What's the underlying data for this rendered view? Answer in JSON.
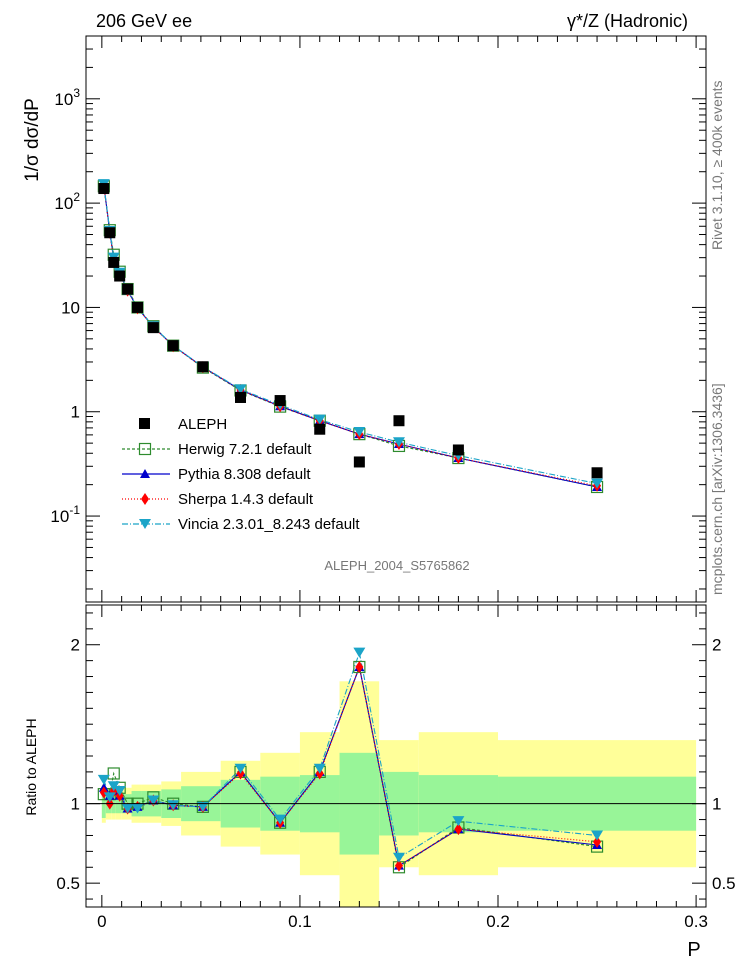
{
  "header": {
    "left": "206 GeV ee",
    "right": "γ*/Z (Hadronic)"
  },
  "side_labels": {
    "rivet": "Rivet 3.1.10, ≥ 400k events",
    "mcplots": "mcplots.cern.ch [arXiv:1306.3436]"
  },
  "colors": {
    "data": "#000000",
    "herwig": "#2e8b2e",
    "pythia": "#0000cc",
    "sherpa": "#ff0000",
    "vincia": "#1ba4c8",
    "band_inner": "#98f598",
    "band_outer": "#ffff99"
  },
  "chart_data": [
    {
      "type": "scatter",
      "title": "ALEPH_2004_S5765862",
      "ylabel": "1/σ  dσ/dP",
      "xlabel": "P",
      "yscale": "log",
      "xlim": [
        -0.008,
        0.305
      ],
      "ylim": [
        0.015,
        4000
      ],
      "ytick_labels": [
        "10^-1",
        "1",
        "10",
        "10^2",
        "10^3"
      ],
      "legend_position": "bottom-left",
      "x": [
        0.001,
        0.004,
        0.006,
        0.009,
        0.013,
        0.018,
        0.026,
        0.036,
        0.051,
        0.07,
        0.09,
        0.11,
        0.13,
        0.15,
        0.18,
        0.25
      ],
      "series": [
        {
          "name": "ALEPH",
          "key": "data",
          "values": [
            138,
            52,
            27,
            20,
            15,
            10,
            6.4,
            4.3,
            2.7,
            1.37,
            1.28,
            0.68,
            0.33,
            0.82,
            0.43,
            0.26
          ]
        },
        {
          "name": "Herwig 7.2.1 default",
          "key": "herwig",
          "values": [
            145,
            55,
            32,
            22,
            15,
            10,
            6.6,
            4.3,
            2.65,
            1.6,
            1.12,
            0.82,
            0.61,
            0.47,
            0.36,
            0.19
          ]
        },
        {
          "name": "Pythia 8.308 default",
          "key": "pythia",
          "values": [
            150,
            53,
            29,
            21,
            14.5,
            9.9,
            6.5,
            4.3,
            2.68,
            1.62,
            1.13,
            0.82,
            0.61,
            0.49,
            0.36,
            0.19
          ]
        },
        {
          "name": "Sherpa 1.4.3 default",
          "key": "sherpa",
          "values": [
            148,
            52,
            29,
            21,
            14.5,
            9.8,
            6.5,
            4.25,
            2.68,
            1.62,
            1.13,
            0.82,
            0.61,
            0.49,
            0.36,
            0.195
          ]
        },
        {
          "name": "Vincia 2.3.01_8.243 default",
          "key": "vincia",
          "values": [
            152,
            54,
            30,
            21.5,
            14.6,
            9.9,
            6.6,
            4.3,
            2.7,
            1.64,
            1.16,
            0.84,
            0.64,
            0.51,
            0.38,
            0.205
          ]
        }
      ]
    },
    {
      "type": "line",
      "ylabel": "Ratio to ALEPH",
      "xlabel": "P",
      "xlim": [
        -0.008,
        0.305
      ],
      "ylim": [
        0.35,
        2.25
      ],
      "xtick_labels": [
        "0",
        "0.1",
        "0.2",
        "0.3"
      ],
      "ytick_labels": [
        "0.5",
        "1",
        "2"
      ],
      "reference_line": 1,
      "x": [
        0.001,
        0.004,
        0.006,
        0.009,
        0.013,
        0.018,
        0.026,
        0.036,
        0.051,
        0.07,
        0.09,
        0.11,
        0.13,
        0.15,
        0.18,
        0.25
      ],
      "uncertainty_bins": {
        "edges": [
          0,
          0.002,
          0.005,
          0.007,
          0.01,
          0.015,
          0.02,
          0.03,
          0.04,
          0.06,
          0.08,
          0.1,
          0.12,
          0.14,
          0.16,
          0.2,
          0.3
        ],
        "inner": [
          0.09,
          0.06,
          0.06,
          0.06,
          0.06,
          0.08,
          0.08,
          0.09,
          0.11,
          0.15,
          0.17,
          0.18,
          0.32,
          0.2,
          0.18,
          0.17
        ],
        "outer": [
          0.12,
          0.1,
          0.1,
          0.1,
          0.1,
          0.12,
          0.12,
          0.14,
          0.2,
          0.27,
          0.32,
          0.45,
          0.77,
          0.4,
          0.45,
          0.4
        ]
      },
      "series": [
        {
          "name": "Herwig 7.2.1 default",
          "key": "herwig",
          "values": [
            1.06,
            1.06,
            1.19,
            1.1,
            1.0,
            1.0,
            1.04,
            1.0,
            0.98,
            1.2,
            0.88,
            1.2,
            1.86,
            0.6,
            0.85,
            0.73
          ]
        },
        {
          "name": "Pythia 8.308 default",
          "key": "pythia",
          "values": [
            1.1,
            1.05,
            1.08,
            1.05,
            0.97,
            0.98,
            1.02,
            0.99,
            0.98,
            1.2,
            0.88,
            1.2,
            1.86,
            0.61,
            0.84,
            0.74
          ]
        },
        {
          "name": "Sherpa 1.4.3 default",
          "key": "sherpa",
          "values": [
            1.07,
            1.0,
            1.08,
            1.05,
            0.97,
            0.98,
            1.02,
            0.99,
            0.98,
            1.19,
            0.88,
            1.19,
            1.86,
            0.61,
            0.84,
            0.76
          ]
        },
        {
          "name": "Vincia 2.3.01_8.243 default",
          "key": "vincia",
          "values": [
            1.15,
            1.04,
            1.11,
            1.08,
            0.97,
            0.97,
            1.02,
            0.99,
            0.98,
            1.22,
            0.9,
            1.22,
            1.95,
            0.66,
            0.89,
            0.8
          ]
        }
      ]
    }
  ]
}
